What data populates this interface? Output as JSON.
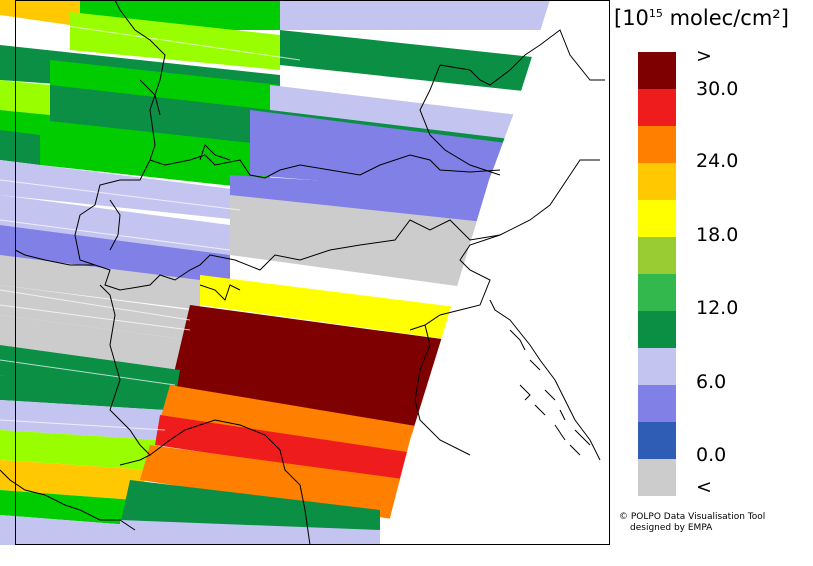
{
  "legend": {
    "unit_base": "[10",
    "unit_exp": "15",
    "unit_rest": " molec/cm²]",
    "colors": [
      "#7f0000",
      "#ee1c1c",
      "#ff7f00",
      "#ffc800",
      "#ffff00",
      "#99cc33",
      "#33b84d",
      "#0a8f45",
      "#c4c4f0",
      "#8080e6",
      "#2f5cb5",
      "#cccccc"
    ],
    "ticks": [
      ">",
      "30.0",
      "24.0",
      "18.0",
      "12.0",
      "6.0",
      "0.0",
      "<"
    ]
  },
  "credit": {
    "line1": "© POLPO Data Visualisation Tool",
    "line2": "designed by EMPA"
  },
  "map": {
    "background": "#ffffff",
    "border_color": "#000000"
  }
}
